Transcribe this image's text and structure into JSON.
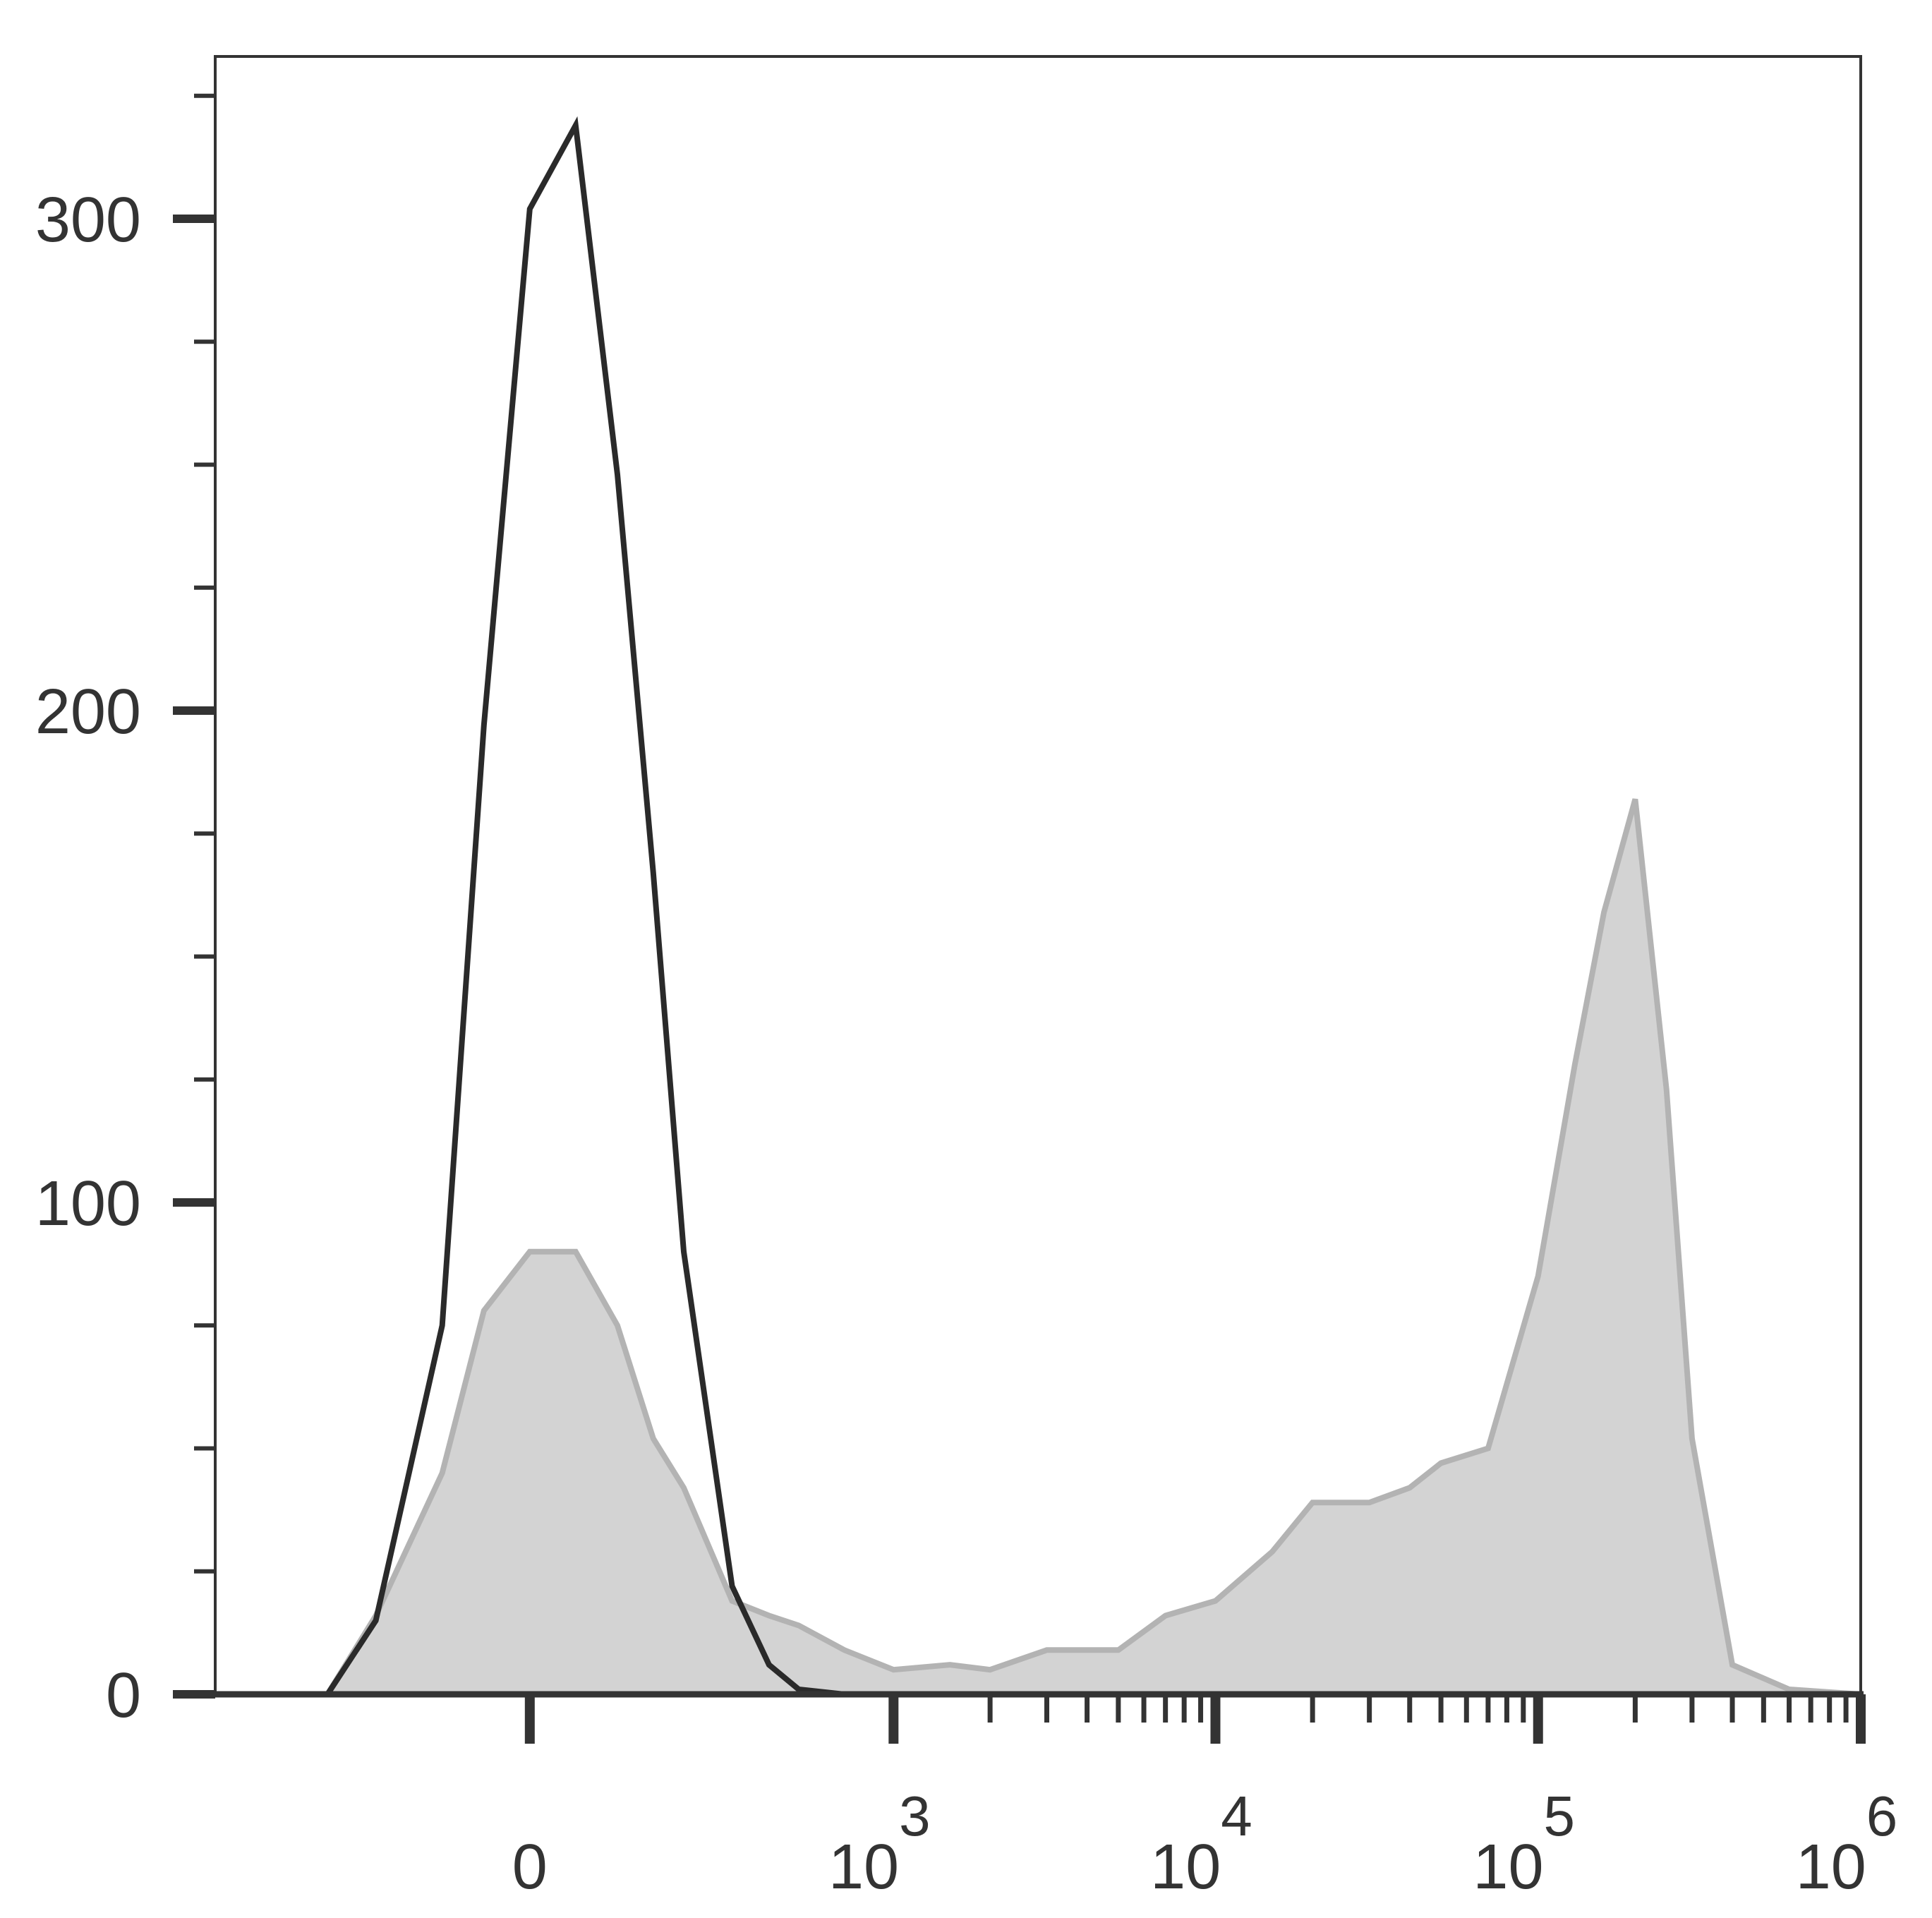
{
  "chart_data": {
    "type": "histogram-overlay",
    "x": [
      -300,
      -200,
      -100,
      -50,
      0,
      50,
      100,
      150,
      200,
      300,
      400,
      500,
      700,
      1000,
      1500,
      2000,
      3000,
      5000,
      7000,
      10000,
      15000,
      20000,
      30000,
      40000,
      50000,
      70000,
      100000,
      130000,
      160000,
      200000,
      250000,
      300000,
      400000,
      600000,
      1000000
    ],
    "series": [
      {
        "color": "#b3b3b3",
        "fill": "#d3d3d3",
        "values": [
          0,
          16,
          45,
          78,
          90,
          90,
          75,
          52,
          42,
          19,
          16,
          14,
          9,
          5,
          6,
          5,
          9,
          9,
          16,
          19,
          29,
          39,
          39,
          42,
          47,
          50,
          85,
          128,
          159,
          182,
          123,
          52,
          6,
          1,
          0
        ]
      },
      {
        "color": "#2a2a2a",
        "values": [
          0,
          15,
          75,
          197,
          302,
          319,
          248,
          167,
          90,
          22,
          6,
          1,
          0,
          0,
          0,
          0,
          0,
          0,
          0,
          0,
          0,
          0,
          0,
          0,
          0,
          0,
          0,
          0,
          0,
          0,
          0,
          0,
          0,
          0,
          0
        ]
      }
    ],
    "xscale": "biexponential",
    "xlim": [
      -700,
      1000000
    ],
    "xticks": [
      0,
      {
        "value": 1000,
        "label": "10",
        "exponent": "3"
      },
      {
        "value": 10000,
        "label": "10",
        "exponent": "4"
      },
      {
        "value": 100000,
        "label": "10",
        "exponent": "5"
      },
      {
        "value": 1000000,
        "label": "10",
        "exponent": "6"
      }
    ],
    "xminorticks": [
      2000,
      3000,
      4000,
      5000,
      6000,
      7000,
      8000,
      9000,
      20000,
      30000,
      40000,
      50000,
      60000,
      70000,
      80000,
      90000,
      200000,
      300000,
      400000,
      500000,
      600000,
      700000,
      800000,
      900000
    ],
    "ylim": [
      0,
      333
    ],
    "yticks": [
      0,
      100,
      200,
      300
    ],
    "yminorticks": [
      25,
      50,
      75,
      125,
      150,
      175,
      225,
      250,
      275,
      325
    ]
  }
}
